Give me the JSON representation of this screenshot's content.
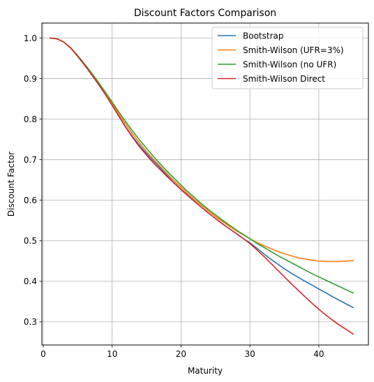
{
  "chart_data": {
    "type": "line",
    "title": "Discount Factors Comparison",
    "xlabel": "Maturity",
    "ylabel": "Discount Factor",
    "xlim": [
      -0.2,
      47.2
    ],
    "ylim": [
      0.243,
      1.037
    ],
    "xticks": [
      0,
      10,
      20,
      30,
      40
    ],
    "xtick_labels": [
      "0",
      "10",
      "20",
      "30",
      "40"
    ],
    "yticks": [
      0.3,
      0.4,
      0.5,
      0.6,
      0.7,
      0.8,
      0.9,
      1.0
    ],
    "ytick_labels": [
      "0.3",
      "0.4",
      "0.5",
      "0.6",
      "0.7",
      "0.8",
      "0.9",
      "1.0"
    ],
    "grid": true,
    "legend_position": "top-right",
    "x": [
      1,
      2,
      3,
      4,
      5,
      6,
      7,
      8,
      9,
      10,
      11,
      12,
      13,
      14,
      15,
      16,
      17,
      18,
      19,
      20,
      21,
      22,
      23,
      24,
      25,
      26,
      27,
      28,
      29,
      30,
      31,
      32,
      33,
      34,
      35,
      36,
      37,
      38,
      39,
      40,
      41,
      42,
      43,
      44,
      45
    ],
    "series": [
      {
        "name": "Bootstrap",
        "color": "#1f77b4",
        "values": [
          1.0,
          0.998,
          0.99,
          0.975,
          0.955,
          0.934,
          0.912,
          0.888,
          0.862,
          0.835,
          0.807,
          0.78,
          0.756,
          0.735,
          0.715,
          0.697,
          0.679,
          0.661,
          0.643,
          0.627,
          0.612,
          0.597,
          0.582,
          0.568,
          0.555,
          0.542,
          0.53,
          0.518,
          0.506,
          0.495,
          0.482,
          0.468,
          0.455,
          0.443,
          0.431,
          0.42,
          0.41,
          0.4,
          0.391,
          0.381,
          0.372,
          0.362,
          0.353,
          0.344,
          0.335
        ]
      },
      {
        "name": "Smith-Wilson (UFR=3%)",
        "color": "#ff7f0e",
        "values": [
          1.0,
          0.998,
          0.99,
          0.975,
          0.956,
          0.935,
          0.912,
          0.889,
          0.864,
          0.838,
          0.812,
          0.787,
          0.763,
          0.741,
          0.72,
          0.701,
          0.683,
          0.665,
          0.648,
          0.632,
          0.616,
          0.601,
          0.587,
          0.573,
          0.56,
          0.548,
          0.536,
          0.525,
          0.515,
          0.505,
          0.496,
          0.488,
          0.481,
          0.474,
          0.468,
          0.463,
          0.458,
          0.455,
          0.452,
          0.45,
          0.449,
          0.449,
          0.449,
          0.45,
          0.451
        ]
      },
      {
        "name": "Smith-Wilson (no UFR)",
        "color": "#2ca02c",
        "values": [
          1.0,
          0.998,
          0.99,
          0.976,
          0.957,
          0.936,
          0.914,
          0.891,
          0.867,
          0.842,
          0.817,
          0.793,
          0.77,
          0.748,
          0.728,
          0.708,
          0.689,
          0.671,
          0.654,
          0.637,
          0.621,
          0.606,
          0.591,
          0.577,
          0.564,
          0.551,
          0.539,
          0.527,
          0.516,
          0.505,
          0.494,
          0.484,
          0.474,
          0.464,
          0.455,
          0.446,
          0.437,
          0.428,
          0.419,
          0.411,
          0.403,
          0.395,
          0.387,
          0.379,
          0.371
        ]
      },
      {
        "name": "Smith-Wilson Direct",
        "color": "#d62728",
        "values": [
          1.0,
          0.998,
          0.99,
          0.975,
          0.955,
          0.933,
          0.91,
          0.886,
          0.861,
          0.834,
          0.806,
          0.779,
          0.754,
          0.731,
          0.711,
          0.692,
          0.675,
          0.658,
          0.642,
          0.626,
          0.611,
          0.596,
          0.582,
          0.568,
          0.555,
          0.542,
          0.53,
          0.518,
          0.506,
          0.493,
          0.478,
          0.462,
          0.445,
          0.428,
          0.411,
          0.394,
          0.378,
          0.362,
          0.346,
          0.331,
          0.317,
          0.304,
          0.292,
          0.281,
          0.27
        ]
      }
    ]
  }
}
